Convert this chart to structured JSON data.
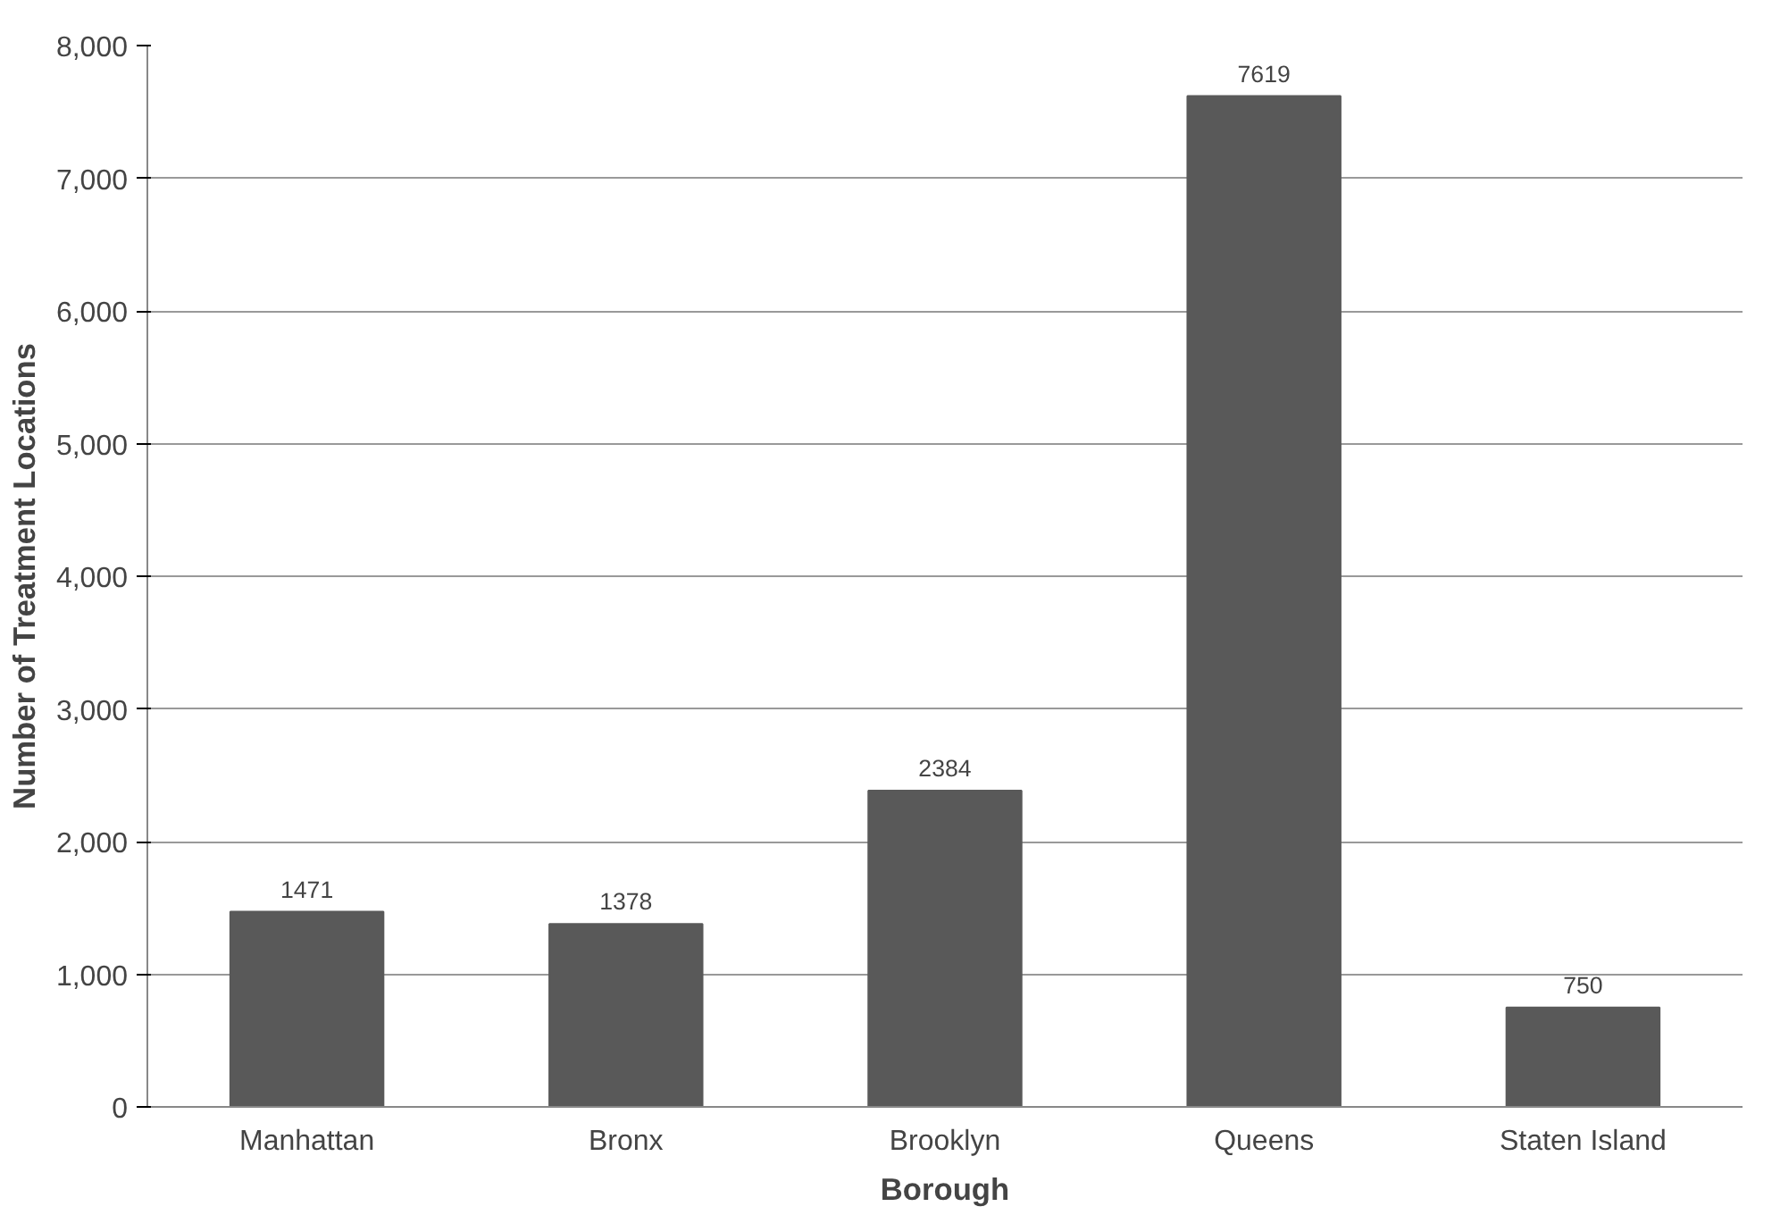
{
  "chart_data": {
    "type": "bar",
    "xlabel": "Borough",
    "ylabel": "Number of Treatment Locations",
    "categories": [
      "Manhattan",
      "Bronx",
      "Brooklyn",
      "Queens",
      "Staten Island"
    ],
    "values": [
      1471,
      1378,
      2384,
      7619,
      750
    ],
    "color": "#595959",
    "ylim": [
      0,
      8000
    ],
    "yticks": [
      {
        "value": 0,
        "label": "0"
      },
      {
        "value": 1000,
        "label": "1,000"
      },
      {
        "value": 2000,
        "label": "2,000"
      },
      {
        "value": 3000,
        "label": "3,000"
      },
      {
        "value": 4000,
        "label": "4,000"
      },
      {
        "value": 5000,
        "label": "5,000"
      },
      {
        "value": 6000,
        "label": "6,000"
      },
      {
        "value": 7000,
        "label": "7,000"
      },
      {
        "value": 8000,
        "label": "8,000"
      }
    ],
    "grid": "y",
    "data_labels": true
  }
}
